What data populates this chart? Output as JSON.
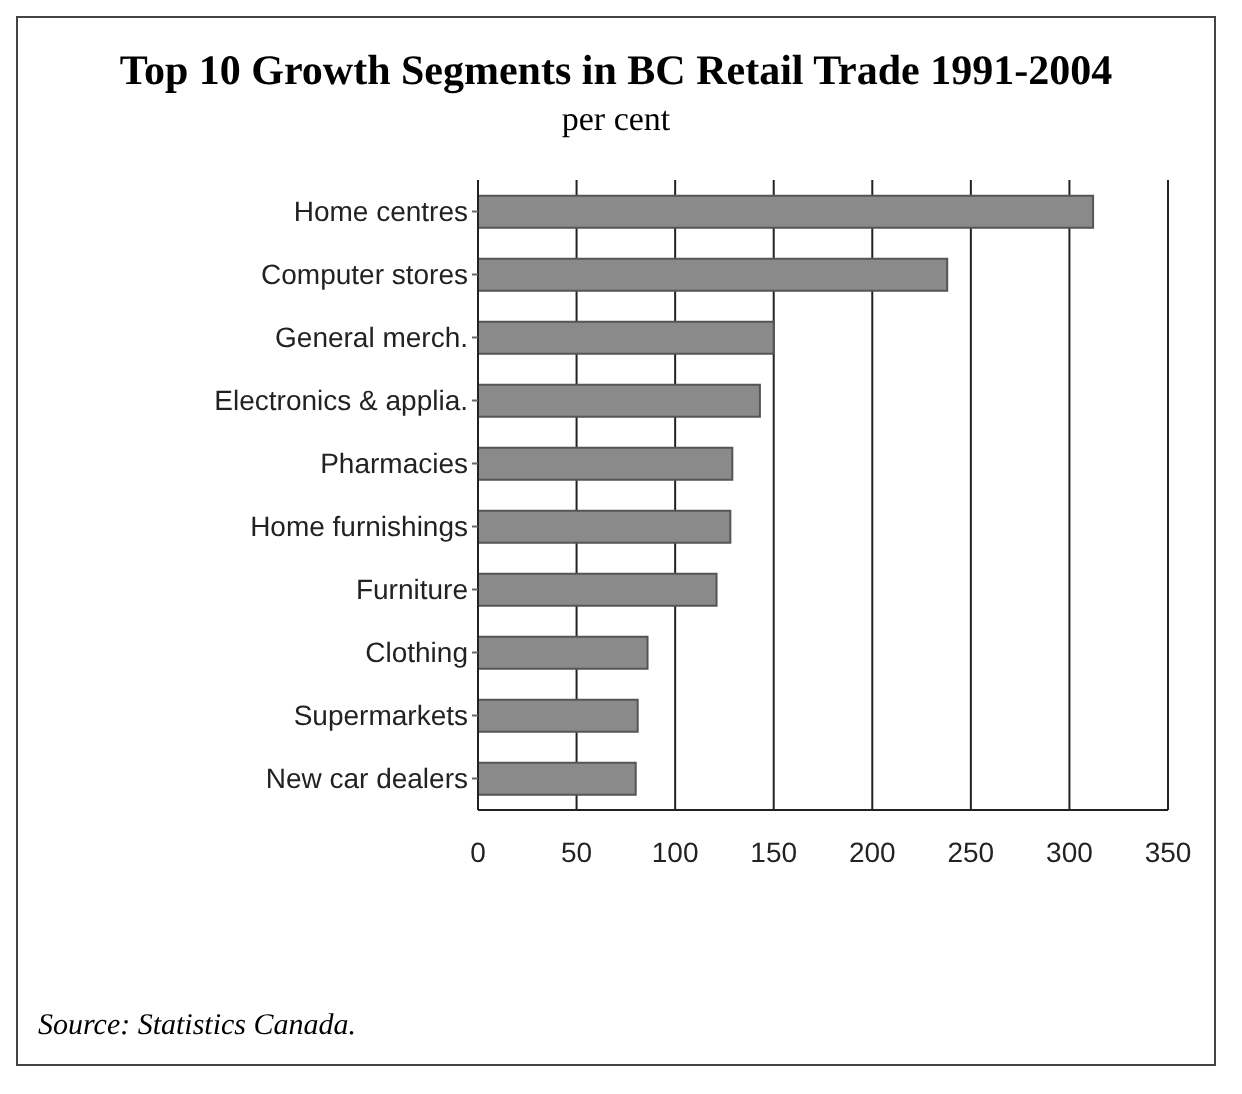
{
  "chart_data": {
    "type": "bar",
    "orientation": "horizontal",
    "title": "Top 10 Growth Segments in BC Retail Trade 1991-2004",
    "subtitle": "per cent",
    "categories": [
      "Home centres",
      "Computer stores",
      "General merch.",
      "Electronics & applia.",
      "Pharmacies",
      "Home furnishings",
      "Furniture",
      "Clothing",
      "Supermarkets",
      "New car dealers"
    ],
    "values": [
      312,
      238,
      150,
      143,
      129,
      128,
      121,
      86,
      81,
      80
    ],
    "color": "#8a8a8a",
    "xlim": [
      0,
      350
    ],
    "xticks": [
      0,
      50,
      100,
      150,
      200,
      250,
      300,
      350
    ],
    "grid": "x",
    "annotations": [
      "Source: Statistics Canada."
    ]
  }
}
